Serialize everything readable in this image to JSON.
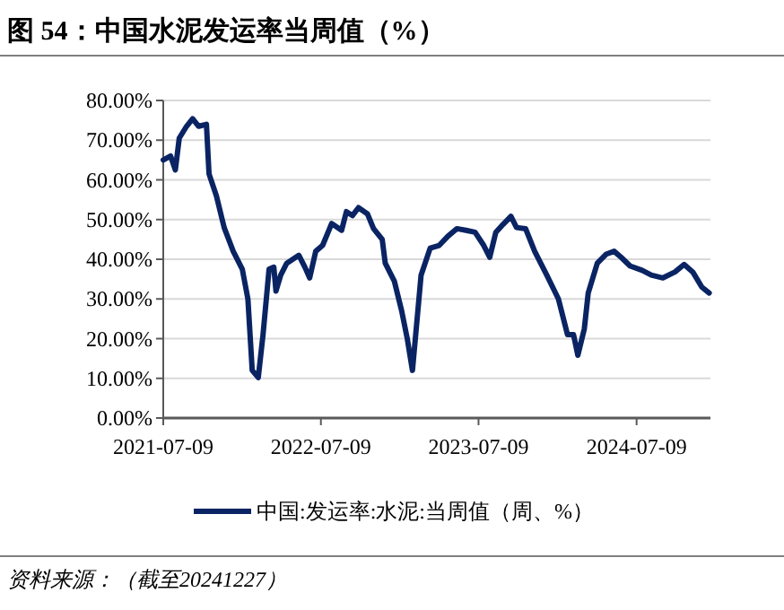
{
  "chart_data": {
    "type": "line",
    "title": "图 54：中国水泥发运率当周值（%）",
    "annotations": [
      "资料来源：（截至20241227）"
    ],
    "x": [
      "2021-07-09",
      "2021-07-26",
      "2021-08-06",
      "2021-08-15",
      "2021-09-01",
      "2021-09-15",
      "2021-09-29",
      "2021-10-17",
      "2021-10-23",
      "2021-11-09",
      "2021-11-27",
      "2021-12-18",
      "2022-01-08",
      "2022-01-21",
      "2022-01-31",
      "2022-02-14",
      "2022-02-25",
      "2022-03-11",
      "2022-03-22",
      "2022-03-27",
      "2022-04-07",
      "2022-04-21",
      "2022-05-05",
      "2022-05-19",
      "2022-06-02",
      "2022-06-13",
      "2022-06-27",
      "2022-07-13",
      "2022-08-03",
      "2022-08-26",
      "2022-09-06",
      "2022-09-20",
      "2022-10-04",
      "2022-10-25",
      "2022-11-08",
      "2022-11-28",
      "2022-12-05",
      "2022-12-26",
      "2023-01-12",
      "2023-01-25",
      "2023-02-06",
      "2023-02-26",
      "2023-03-19",
      "2023-04-09",
      "2023-04-29",
      "2023-05-20",
      "2023-06-10",
      "2023-07-01",
      "2023-07-21",
      "2023-08-04",
      "2023-08-18",
      "2023-09-04",
      "2023-09-22",
      "2023-10-05",
      "2023-10-26",
      "2023-11-16",
      "2023-12-14",
      "2024-01-10",
      "2024-01-31",
      "2024-02-14",
      "2024-02-24",
      "2024-03-10",
      "2024-03-19",
      "2024-04-09",
      "2024-04-30",
      "2024-05-18",
      "2024-06-03",
      "2024-06-24",
      "2024-07-22",
      "2024-08-12",
      "2024-09-08",
      "2024-10-06",
      "2024-10-27",
      "2024-11-16",
      "2024-12-07",
      "2024-12-24"
    ],
    "series": [
      {
        "name": "中国:发运率:水泥:当周值（周、%）",
        "color": "#0a2463",
        "values": [
          65,
          66,
          62.5,
          70.5,
          73.5,
          75.4,
          73.5,
          74,
          61.5,
          56,
          48,
          42,
          37.5,
          30,
          12,
          10.2,
          21,
          37.5,
          38,
          32,
          36,
          39,
          40,
          41,
          38,
          35.3,
          42,
          43.5,
          49,
          47.3,
          52,
          51,
          53,
          51.4,
          47.7,
          45,
          39,
          34.5,
          27,
          20,
          12,
          36,
          42.8,
          43.5,
          45.8,
          47.7,
          47.3,
          46.8,
          43.5,
          40.5,
          46.8,
          48.8,
          50.8,
          48,
          47.7,
          42,
          36,
          30,
          21,
          21,
          15.8,
          22.5,
          31.5,
          39,
          41.3,
          42,
          40.5,
          38.3,
          37.2,
          36,
          35.3,
          36.8,
          38.7,
          36.8,
          33,
          31.5
        ]
      }
    ],
    "xlim": [
      "2021-07-09",
      "2024-12-27"
    ],
    "xticks": [
      "2021-07-09",
      "2022-07-09",
      "2023-07-09",
      "2024-07-09"
    ],
    "ylim": [
      0,
      80
    ],
    "yticks": [
      {
        "value": 0,
        "label": "0.00%"
      },
      {
        "value": 10,
        "label": "10.00%"
      },
      {
        "value": 20,
        "label": "20.00%"
      },
      {
        "value": 30,
        "label": "30.00%"
      },
      {
        "value": 40,
        "label": "40.00%"
      },
      {
        "value": 50,
        "label": "50.00%"
      },
      {
        "value": 60,
        "label": "60.00%"
      },
      {
        "value": 70,
        "label": "70.00%"
      },
      {
        "value": 80,
        "label": "80.00%"
      }
    ],
    "grid": "y",
    "legend": "bottom",
    "line_style": "solid"
  }
}
